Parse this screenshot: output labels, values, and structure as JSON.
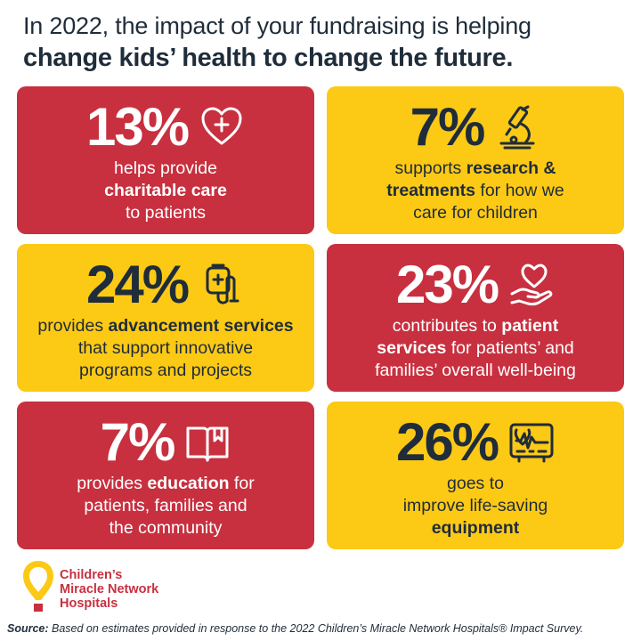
{
  "header": {
    "line1": "In 2022, the impact of your fundraising is helping",
    "line2": "change kids’ health to change the future."
  },
  "cards": [
    {
      "percent": "13%",
      "icon": "heart-plus-icon",
      "color": "#c8303f",
      "lines": [
        {
          "pre": "helps provide",
          "bold": "",
          "post": ""
        },
        {
          "pre": "",
          "bold": "charitable care",
          "post": ""
        },
        {
          "pre": "to patients",
          "bold": "",
          "post": ""
        }
      ]
    },
    {
      "percent": "7%",
      "icon": "microscope-icon",
      "color": "#fcc915",
      "lines": [
        {
          "pre": "supports ",
          "bold": "research &",
          "post": ""
        },
        {
          "pre": "",
          "bold": "treatments",
          "post": " for how we"
        },
        {
          "pre": "care for children",
          "bold": "",
          "post": ""
        }
      ]
    },
    {
      "percent": "24%",
      "icon": "iv-bag-icon",
      "color": "#fcc915",
      "lines": [
        {
          "pre": "provides ",
          "bold": "advancement services",
          "post": ""
        },
        {
          "pre": "that support innovative",
          "bold": "",
          "post": ""
        },
        {
          "pre": "programs and projects",
          "bold": "",
          "post": ""
        }
      ]
    },
    {
      "percent": "23%",
      "icon": "hand-heart-icon",
      "color": "#c8303f",
      "lines": [
        {
          "pre": "contributes to ",
          "bold": "patient",
          "post": ""
        },
        {
          "pre": "",
          "bold": "services",
          "post": " for patients’ and"
        },
        {
          "pre": "families’ overall well-being",
          "bold": "",
          "post": ""
        }
      ]
    },
    {
      "percent": "7%",
      "icon": "book-icon",
      "color": "#c8303f",
      "lines": [
        {
          "pre": "provides ",
          "bold": "education",
          "post": " for"
        },
        {
          "pre": "patients, families and",
          "bold": "",
          "post": ""
        },
        {
          "pre": "the community",
          "bold": "",
          "post": ""
        }
      ]
    },
    {
      "percent": "26%",
      "icon": "heart-monitor-icon",
      "color": "#fcc915",
      "lines": [
        {
          "pre": "goes to",
          "bold": "",
          "post": ""
        },
        {
          "pre": "improve life-saving",
          "bold": "",
          "post": ""
        },
        {
          "pre": "",
          "bold": "equipment",
          "post": ""
        }
      ]
    }
  ],
  "logo": {
    "line1": "Children’s",
    "line2": "Miracle Network",
    "line3": "Hospitals",
    "icon": "balloon-logo-icon"
  },
  "source": {
    "label": "Source:",
    "text": " Based on estimates provided in response to the 2022 Children’s Miracle Network Hospitals® Impact Survey."
  }
}
